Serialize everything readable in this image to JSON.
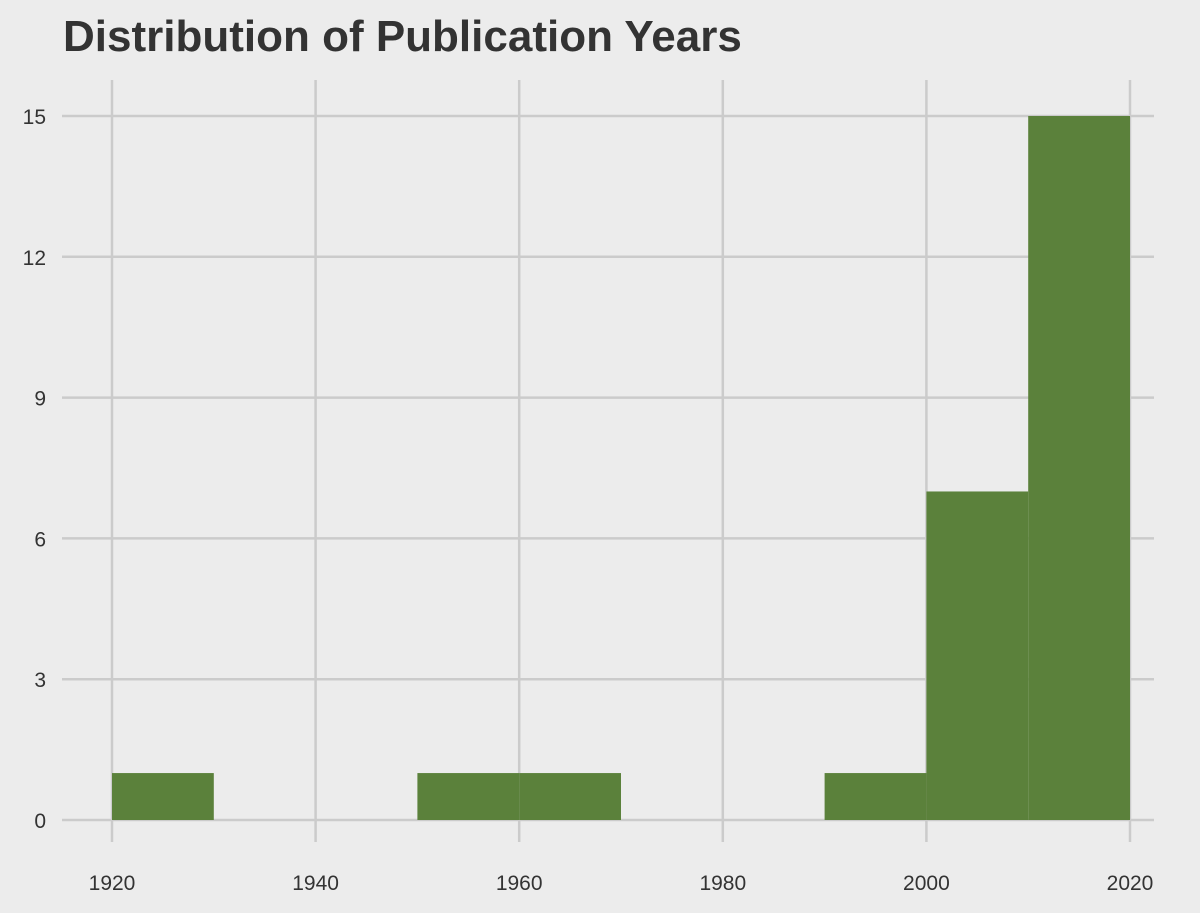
{
  "chart_data": {
    "type": "bar",
    "title": "Distribution of Publication Years",
    "xlabel": "",
    "ylabel": "",
    "bin_width": 10,
    "bins": [
      {
        "start": 1920,
        "end": 1930,
        "count": 1
      },
      {
        "start": 1930,
        "end": 1940,
        "count": 0
      },
      {
        "start": 1940,
        "end": 1950,
        "count": 0
      },
      {
        "start": 1950,
        "end": 1960,
        "count": 1
      },
      {
        "start": 1960,
        "end": 1970,
        "count": 1
      },
      {
        "start": 1970,
        "end": 1980,
        "count": 0
      },
      {
        "start": 1980,
        "end": 1990,
        "count": 0
      },
      {
        "start": 1990,
        "end": 2000,
        "count": 1
      },
      {
        "start": 2000,
        "end": 2010,
        "count": 7
      },
      {
        "start": 2010,
        "end": 2020,
        "count": 15
      }
    ],
    "x_ticks": [
      1920,
      1940,
      1960,
      1980,
      2000,
      2020
    ],
    "y_ticks": [
      0,
      3,
      6,
      9,
      12,
      15
    ],
    "xlim": [
      1915,
      2022
    ],
    "ylim": [
      -0.6,
      16.5
    ],
    "grid": true,
    "bar_color": "#5b813b",
    "background_color": "#ececec",
    "grid_color": "#cbcbcb"
  }
}
